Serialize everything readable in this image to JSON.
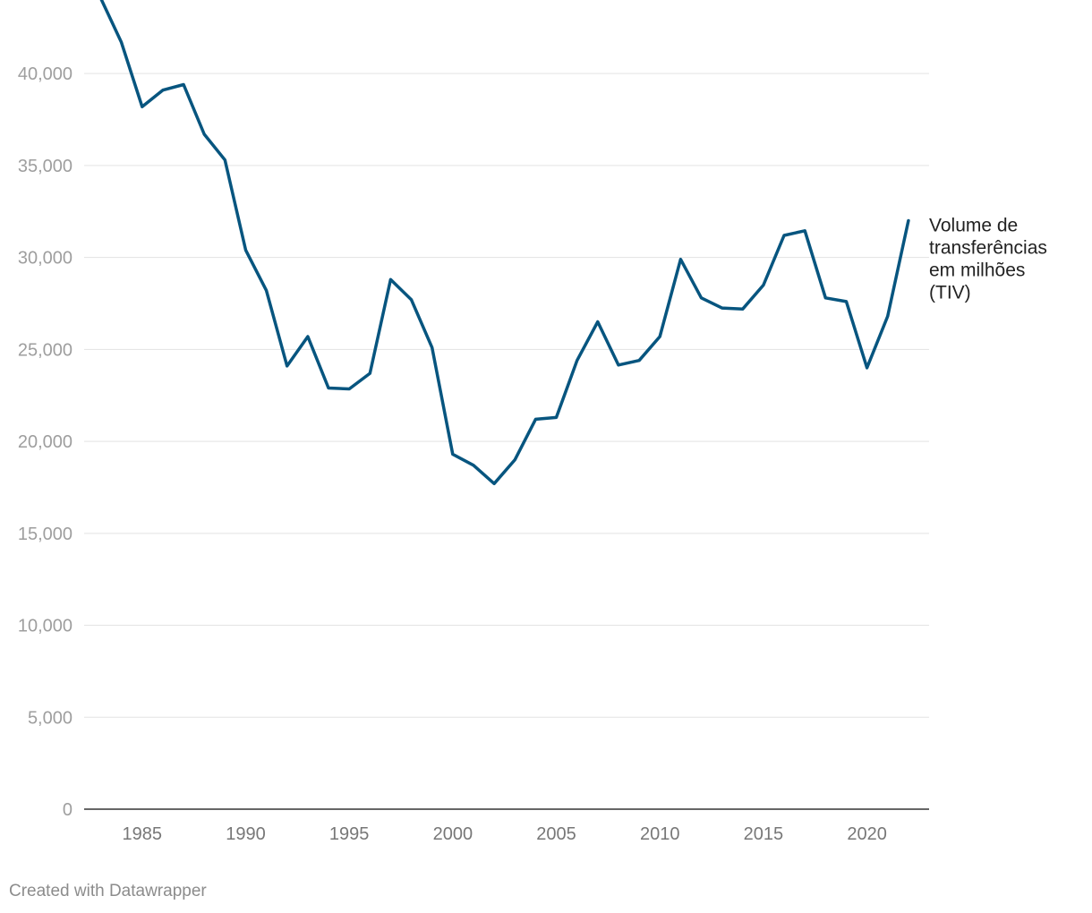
{
  "chart_data": {
    "type": "line",
    "title": "",
    "xlabel": "",
    "ylabel": "",
    "ylim": [
      0,
      44000
    ],
    "xlim": [
      1982.2,
      2023
    ],
    "grid": true,
    "legend": "none",
    "y_ticks": [
      0,
      5000,
      10000,
      15000,
      20000,
      25000,
      30000,
      35000,
      40000
    ],
    "y_tick_labels": [
      "0",
      "5,000",
      "10,000",
      "15,000",
      "20,000",
      "25,000",
      "30,000",
      "35,000",
      "40,000"
    ],
    "x_ticks": [
      1985,
      1990,
      1995,
      2000,
      2005,
      2010,
      2015,
      2020
    ],
    "x_tick_labels": [
      "1985",
      "1990",
      "1995",
      "2000",
      "2005",
      "2010",
      "2015",
      "2020"
    ],
    "series": [
      {
        "name": "Volume de transferências em milhões (TIV)",
        "label_lines": [
          "Volume de",
          "transferências",
          "em milhões",
          "(TIV)"
        ],
        "color": "#07557f",
        "x": [
          1983,
          1984,
          1985,
          1986,
          1987,
          1988,
          1989,
          1990,
          1991,
          1992,
          1993,
          1994,
          1995,
          1996,
          1997,
          1998,
          1999,
          2000,
          2001,
          2002,
          2003,
          2004,
          2005,
          2006,
          2007,
          2008,
          2009,
          2010,
          2011,
          2012,
          2013,
          2014,
          2015,
          2016,
          2017,
          2018,
          2019,
          2020,
          2021,
          2022
        ],
        "values": [
          44100,
          41700,
          38200,
          39100,
          39400,
          36700,
          35300,
          30400,
          28200,
          24100,
          25700,
          22900,
          22850,
          23700,
          28800,
          27700,
          25100,
          19300,
          18700,
          17700,
          19000,
          21200,
          21300,
          24400,
          26500,
          24150,
          24400,
          25700,
          29900,
          27800,
          27250,
          27200,
          28500,
          31200,
          31450,
          27800,
          27600,
          24000,
          26800,
          32000
        ]
      }
    ]
  },
  "footer": {
    "credit": "Created with Datawrapper"
  }
}
